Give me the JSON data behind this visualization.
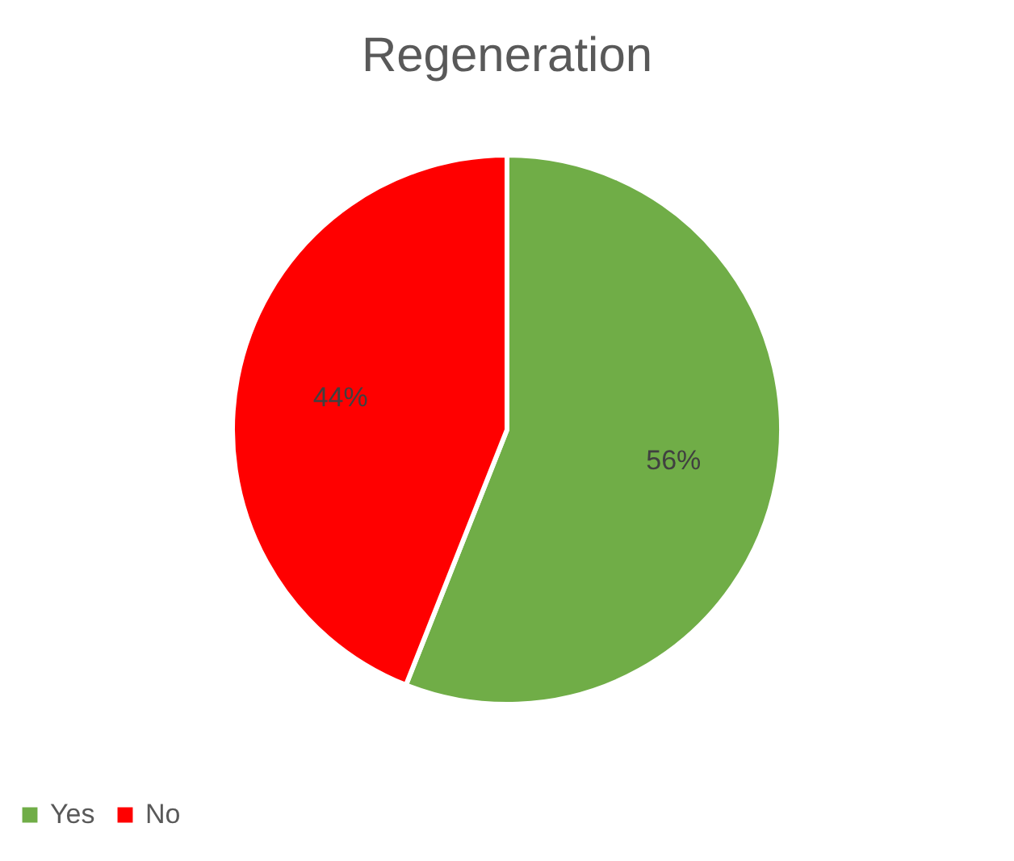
{
  "chart_data": {
    "type": "pie",
    "title": "Regeneration",
    "categories": [
      "Yes",
      "No"
    ],
    "values": [
      56,
      44
    ],
    "colors": [
      "#70ad47",
      "#ff0000"
    ],
    "value_labels": [
      "56%",
      "44%"
    ],
    "legend": "bottom"
  }
}
